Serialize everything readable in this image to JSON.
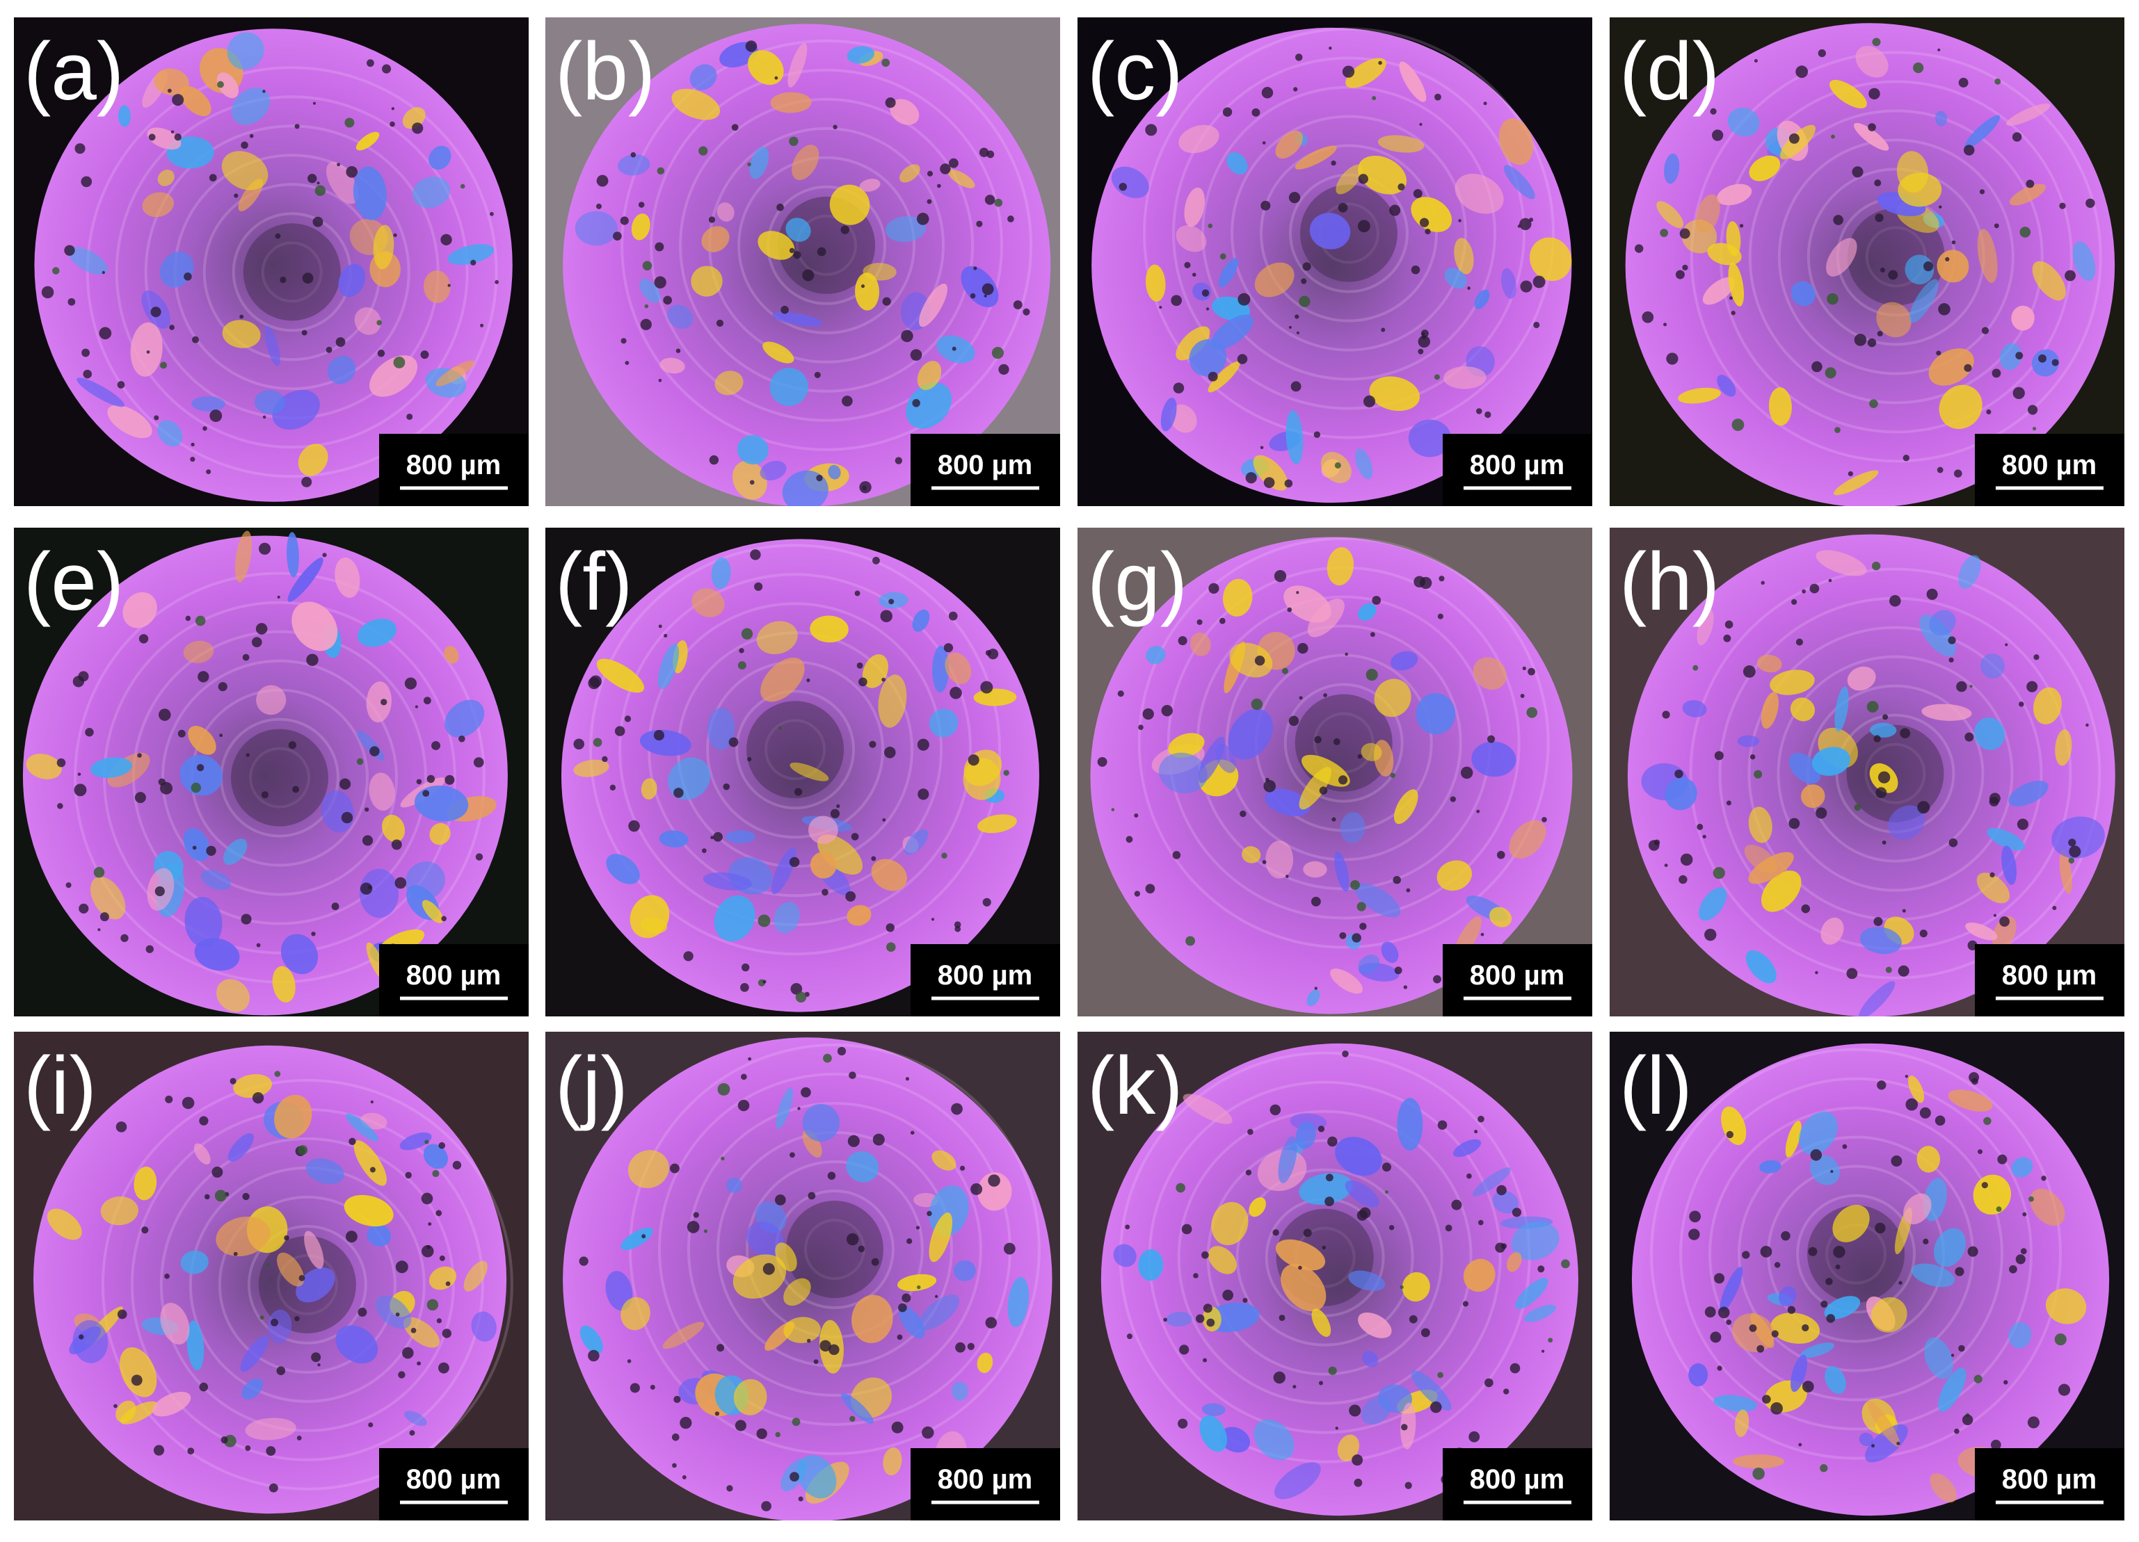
{
  "panels": [
    {
      "label": "(a)",
      "scale": "800 µm"
    },
    {
      "label": "(b)",
      "scale": "800 µm"
    },
    {
      "label": "(c)",
      "scale": "800 µm"
    },
    {
      "label": "(d)",
      "scale": "800 µm"
    },
    {
      "label": "(e)",
      "scale": "800 µm"
    },
    {
      "label": "(f)",
      "scale": "800 µm"
    },
    {
      "label": "(g)",
      "scale": "800 µm"
    },
    {
      "label": "(h)",
      "scale": "800 µm"
    },
    {
      "label": "(i)",
      "scale": "800 µm"
    },
    {
      "label": "(j)",
      "scale": "800 µm"
    },
    {
      "label": "(k)",
      "scale": "800 µm"
    },
    {
      "label": "(l)",
      "scale": "800 µm"
    }
  ]
}
